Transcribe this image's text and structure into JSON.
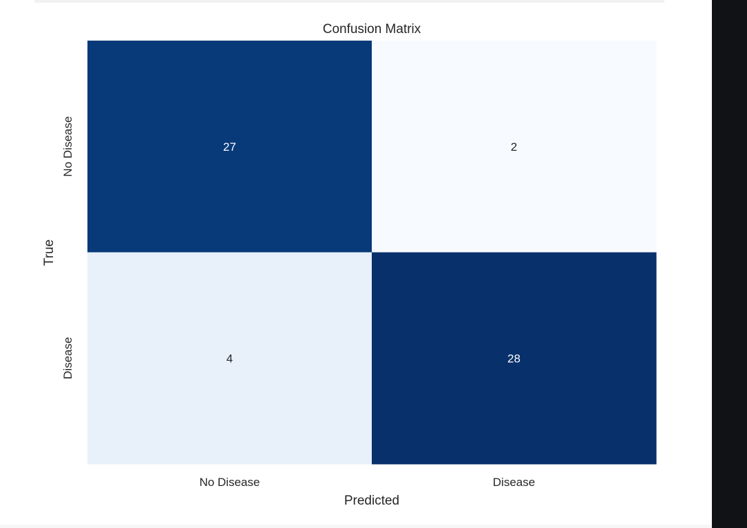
{
  "chart_data": {
    "type": "heatmap",
    "title": "Confusion Matrix",
    "xlabel": "Predicted",
    "ylabel": "True",
    "x_categories": [
      "No Disease",
      "Disease"
    ],
    "y_categories": [
      "No Disease",
      "Disease"
    ],
    "values": [
      [
        27,
        2
      ],
      [
        4,
        28
      ]
    ],
    "colormap": "Blues",
    "color_low": "#f7fbff",
    "color_high": "#08306b",
    "annotations": true,
    "colorbar": false
  }
}
